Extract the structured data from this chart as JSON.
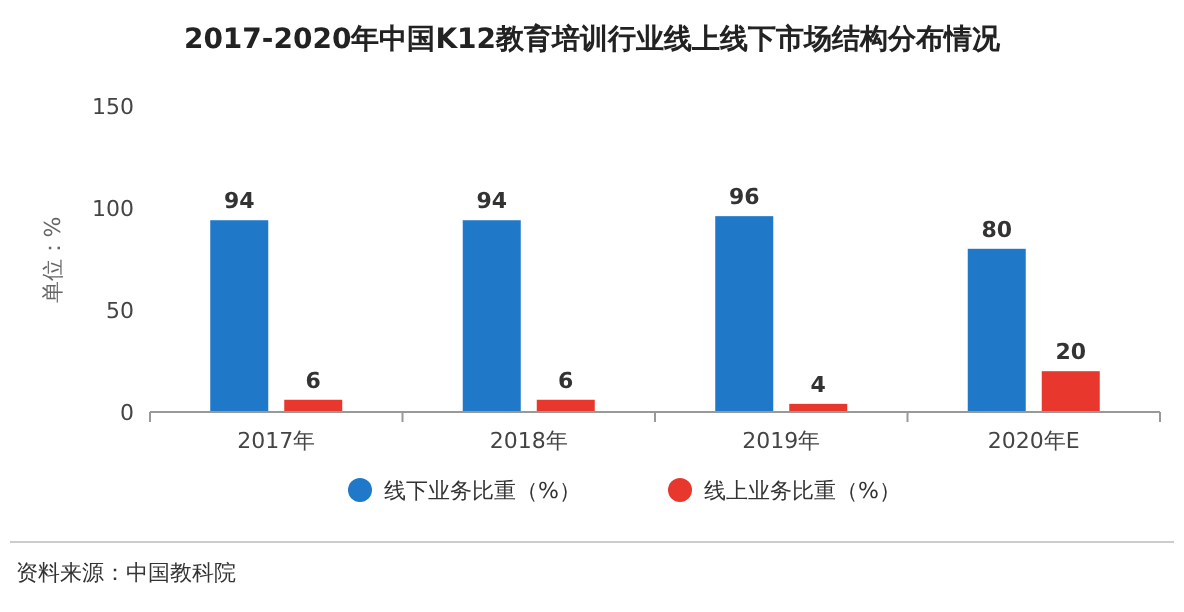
{
  "chart_data": {
    "type": "bar",
    "title": "2017-2020年中国K12教育培训行业线上线下市场结构分布情况",
    "ylabel": "单位：%",
    "categories": [
      "2017年",
      "2018年",
      "2019年",
      "2020年E"
    ],
    "series": [
      {
        "name": "线下业务比重（%）",
        "color": "#1f78c8",
        "values": [
          94,
          94,
          96,
          80
        ]
      },
      {
        "name": "线上业务比重（%）",
        "color": "#e8382d",
        "values": [
          6,
          6,
          4,
          20
        ]
      }
    ],
    "ylim": [
      0,
      150
    ],
    "yticks": [
      0,
      50,
      100,
      150
    ],
    "data_labels": true,
    "legend": "bottom",
    "annotations": [
      "资料来源：中国教科院"
    ]
  }
}
